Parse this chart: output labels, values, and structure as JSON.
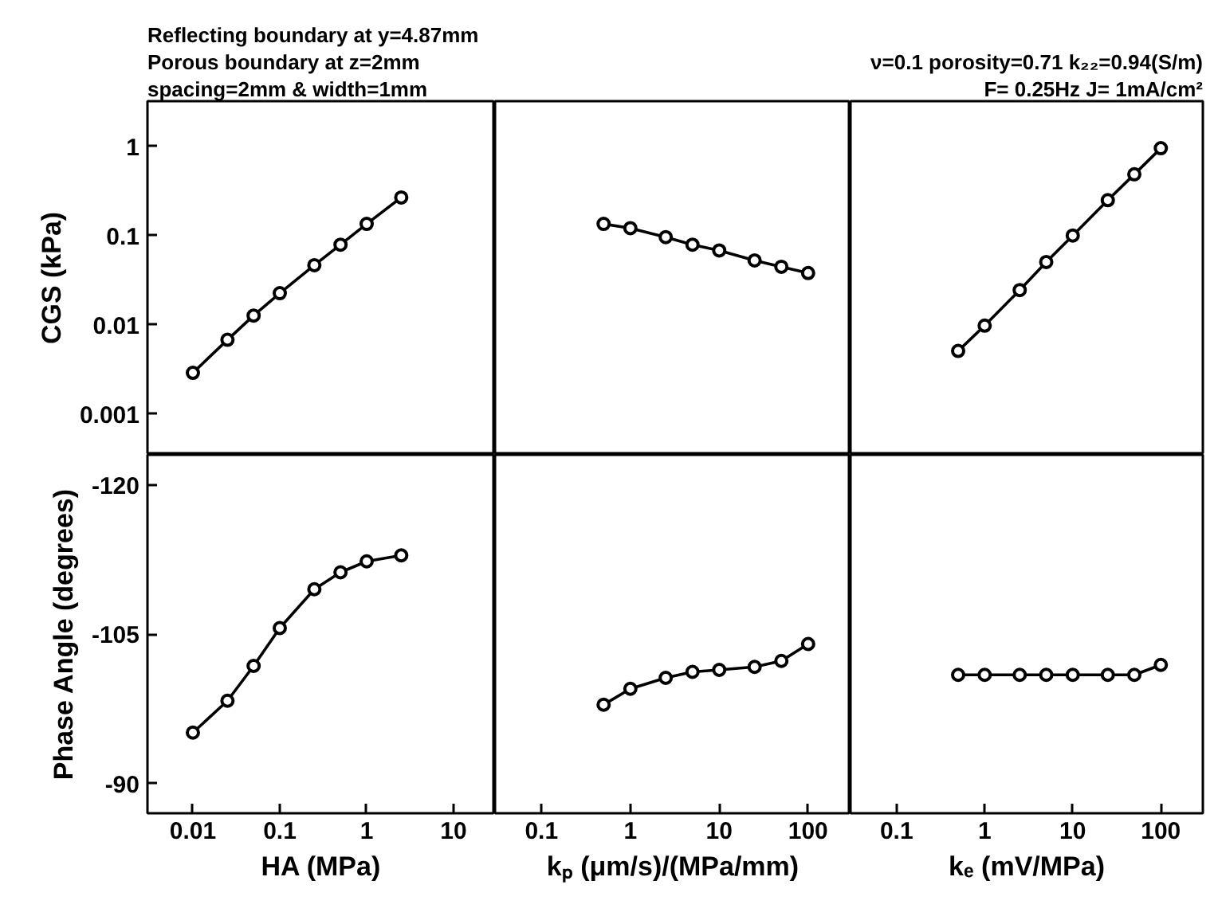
{
  "chart_data": [
    {
      "type": "line",
      "log": "xy",
      "marker": "circle",
      "tick_labels": "y",
      "ylabel": "CGS (kPa)",
      "annotations": [
        "Reflecting boundary at y=4.87mm",
        "Porous boundary at z=2mm",
        "spacing=2mm & width=1mm"
      ],
      "x": [
        0.01,
        0.025,
        0.05,
        0.1,
        0.25,
        0.5,
        1,
        2.5
      ],
      "xlim": [
        0.003,
        30
      ],
      "ylim": [
        0.00035,
        3.2
      ],
      "yticks": [
        0.001,
        0.01,
        0.1,
        1
      ],
      "series": [
        {
          "color": "#000000",
          "values": [
            0.0029,
            0.0068,
            0.0127,
            0.0226,
            0.0466,
            0.079,
            0.135,
            0.267
          ]
        }
      ]
    },
    {
      "type": "line",
      "log": "xy",
      "marker": "circle",
      "tick_labels": false,
      "x": [
        0.5,
        1,
        2.5,
        5,
        10,
        25,
        50,
        100
      ],
      "xlim": [
        0.03,
        300
      ],
      "ylim": [
        0.00035,
        3.2
      ],
      "series": [
        {
          "color": "#000000",
          "values": [
            0.135,
            0.121,
            0.096,
            0.079,
            0.068,
            0.0526,
            0.0447,
            0.038
          ]
        }
      ]
    },
    {
      "type": "line",
      "log": "xy",
      "marker": "circle",
      "tick_labels": false,
      "annotations": [
        "ν=0.1 porosity=0.71 k₂₂=0.94(S/m)",
        "F= 0.25Hz J= 1mA/cm²"
      ],
      "x": [
        0.5,
        1,
        2.5,
        5,
        10,
        25,
        50,
        100
      ],
      "xlim": [
        0.03,
        300
      ],
      "ylim": [
        0.00035,
        3.2
      ],
      "series": [
        {
          "color": "#000000",
          "values": [
            0.0051,
            0.0098,
            0.0245,
            0.0505,
            0.1,
            0.249,
            0.485,
            0.95
          ]
        }
      ]
    },
    {
      "type": "line",
      "log": "x",
      "marker": "circle",
      "ylabel": "Phase Angle (degrees)",
      "xlabel": "HA (MPa)",
      "x": [
        0.01,
        0.025,
        0.05,
        0.1,
        0.25,
        0.5,
        1,
        2.5
      ],
      "xlim": [
        0.003,
        30
      ],
      "xticks": [
        0.01,
        0.1,
        1,
        10
      ],
      "ylim": [
        -87,
        -123
      ],
      "yticks": [
        -90,
        -105,
        -120
      ],
      "series": [
        {
          "color": "#000000",
          "values": [
            -95.1,
            -98.3,
            -101.8,
            -105.6,
            -109.5,
            -111.2,
            -112.3,
            -112.9
          ]
        }
      ]
    },
    {
      "type": "line",
      "log": "x",
      "marker": "circle",
      "tick_labels": "x",
      "xlabel": "kₚ (μm/s)/(MPa/mm)",
      "x": [
        0.5,
        1,
        2.5,
        5,
        10,
        25,
        50,
        100
      ],
      "xlim": [
        0.03,
        300
      ],
      "xticks": [
        0.1,
        1,
        10,
        100
      ],
      "ylim": [
        -87,
        -123
      ],
      "series": [
        {
          "color": "#000000",
          "values": [
            -97.9,
            -99.5,
            -100.6,
            -101.2,
            -101.4,
            -101.7,
            -102.3,
            -104.0
          ]
        }
      ]
    },
    {
      "type": "line",
      "log": "x",
      "marker": "circle",
      "tick_labels": "x",
      "xlabel": "kₑ (mV/MPa)",
      "x": [
        0.5,
        1,
        2.5,
        5,
        10,
        25,
        50,
        100
      ],
      "xlim": [
        0.03,
        300
      ],
      "xticks": [
        0.1,
        1,
        10,
        100
      ],
      "ylim": [
        -87,
        -123
      ],
      "series": [
        {
          "color": "#000000",
          "values": [
            -100.9,
            -100.9,
            -100.9,
            -100.9,
            -100.9,
            -100.9,
            -100.9,
            -101.9
          ]
        }
      ]
    }
  ]
}
